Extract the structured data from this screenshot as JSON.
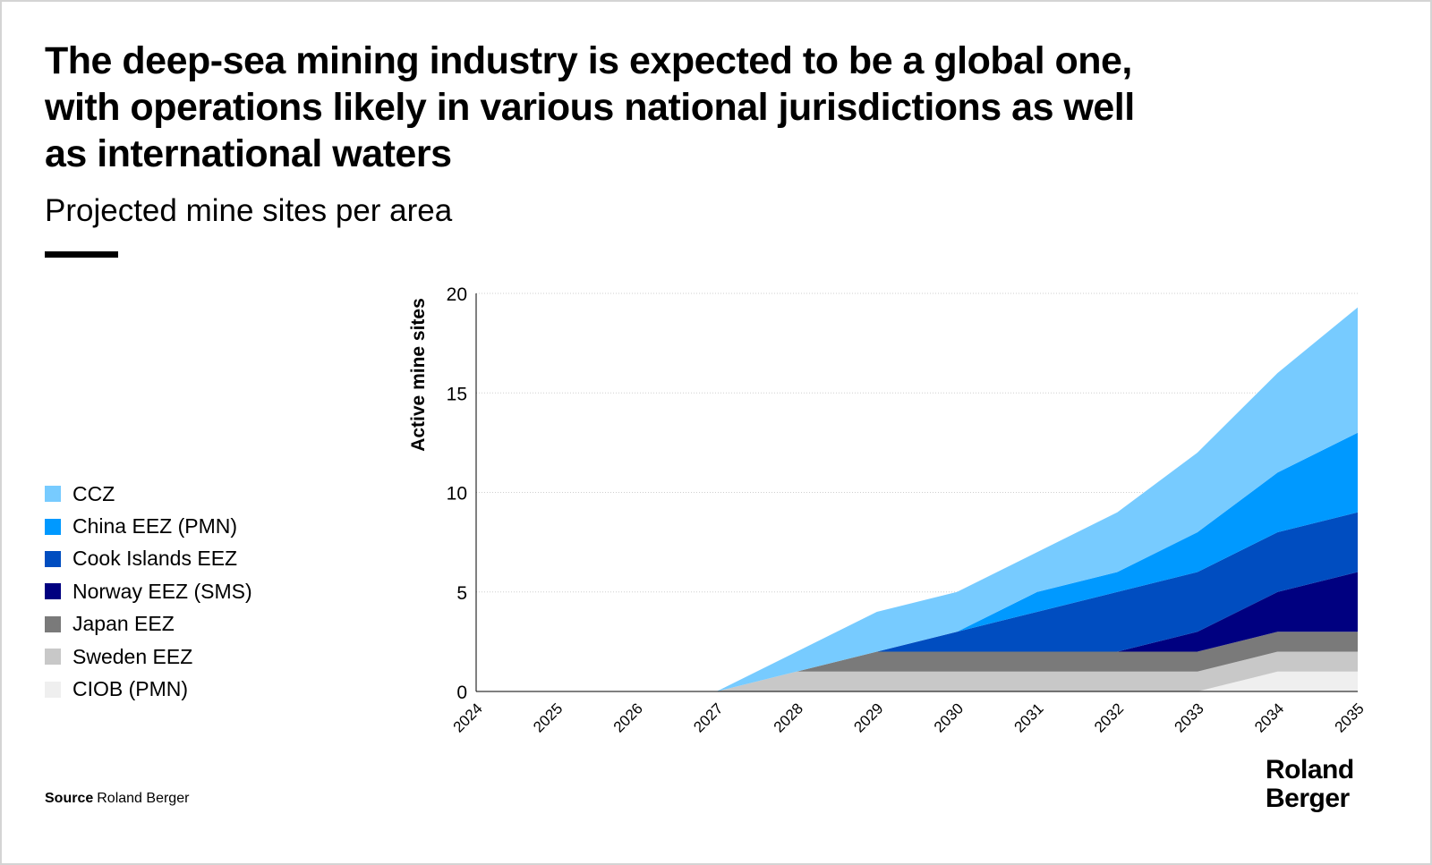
{
  "title": "The deep-sea mining industry is expected to be a global one, with operations likely in various national jurisdictions as well as international waters",
  "subtitle": "Projected mine sites per area",
  "source_label": "Source",
  "source_text": "Roland Berger",
  "logo_text": "Roland Berger",
  "chart_data": {
    "type": "area",
    "stacked": true,
    "ylabel": "Active mine sites",
    "xlabel": "",
    "ylim": [
      0,
      20
    ],
    "yticks": [
      0,
      5,
      10,
      15,
      20
    ],
    "grid": true,
    "legend_placement": "left",
    "categories": [
      "2024",
      "2025",
      "2026",
      "2027",
      "2028",
      "2029",
      "2030",
      "2031",
      "2032",
      "2033",
      "2034",
      "2035"
    ],
    "series": [
      {
        "name": "CIOB (PMN)",
        "color": "#EFEFEF",
        "values": [
          0,
          0,
          0,
          0,
          0,
          0,
          0,
          0,
          0,
          0,
          1,
          1
        ]
      },
      {
        "name": "Sweden EEZ",
        "color": "#C8C8C8",
        "values": [
          0,
          0,
          0,
          0,
          1,
          1,
          1,
          1,
          1,
          1,
          1,
          1
        ]
      },
      {
        "name": "Japan EEZ",
        "color": "#7A7A7A",
        "values": [
          0,
          0,
          0,
          0,
          0,
          1,
          1,
          1,
          1,
          1,
          1,
          1
        ]
      },
      {
        "name": "Norway EEZ (SMS)",
        "color": "#000080",
        "values": [
          0,
          0,
          0,
          0,
          0,
          0,
          0,
          0,
          0,
          1,
          2,
          3
        ]
      },
      {
        "name": "Cook Islands EEZ",
        "color": "#004DC0",
        "values": [
          0,
          0,
          0,
          0,
          0,
          0,
          1,
          2,
          3,
          3,
          3,
          3
        ]
      },
      {
        "name": "China EEZ (PMN)",
        "color": "#0099FF",
        "values": [
          0,
          0,
          0,
          0,
          0,
          0,
          0,
          1,
          1,
          2,
          3,
          4
        ]
      },
      {
        "name": "CCZ",
        "color": "#77CBFF",
        "values": [
          0,
          0,
          0,
          0,
          1,
          2,
          2,
          2,
          3,
          4,
          5,
          6.3
        ]
      }
    ]
  }
}
